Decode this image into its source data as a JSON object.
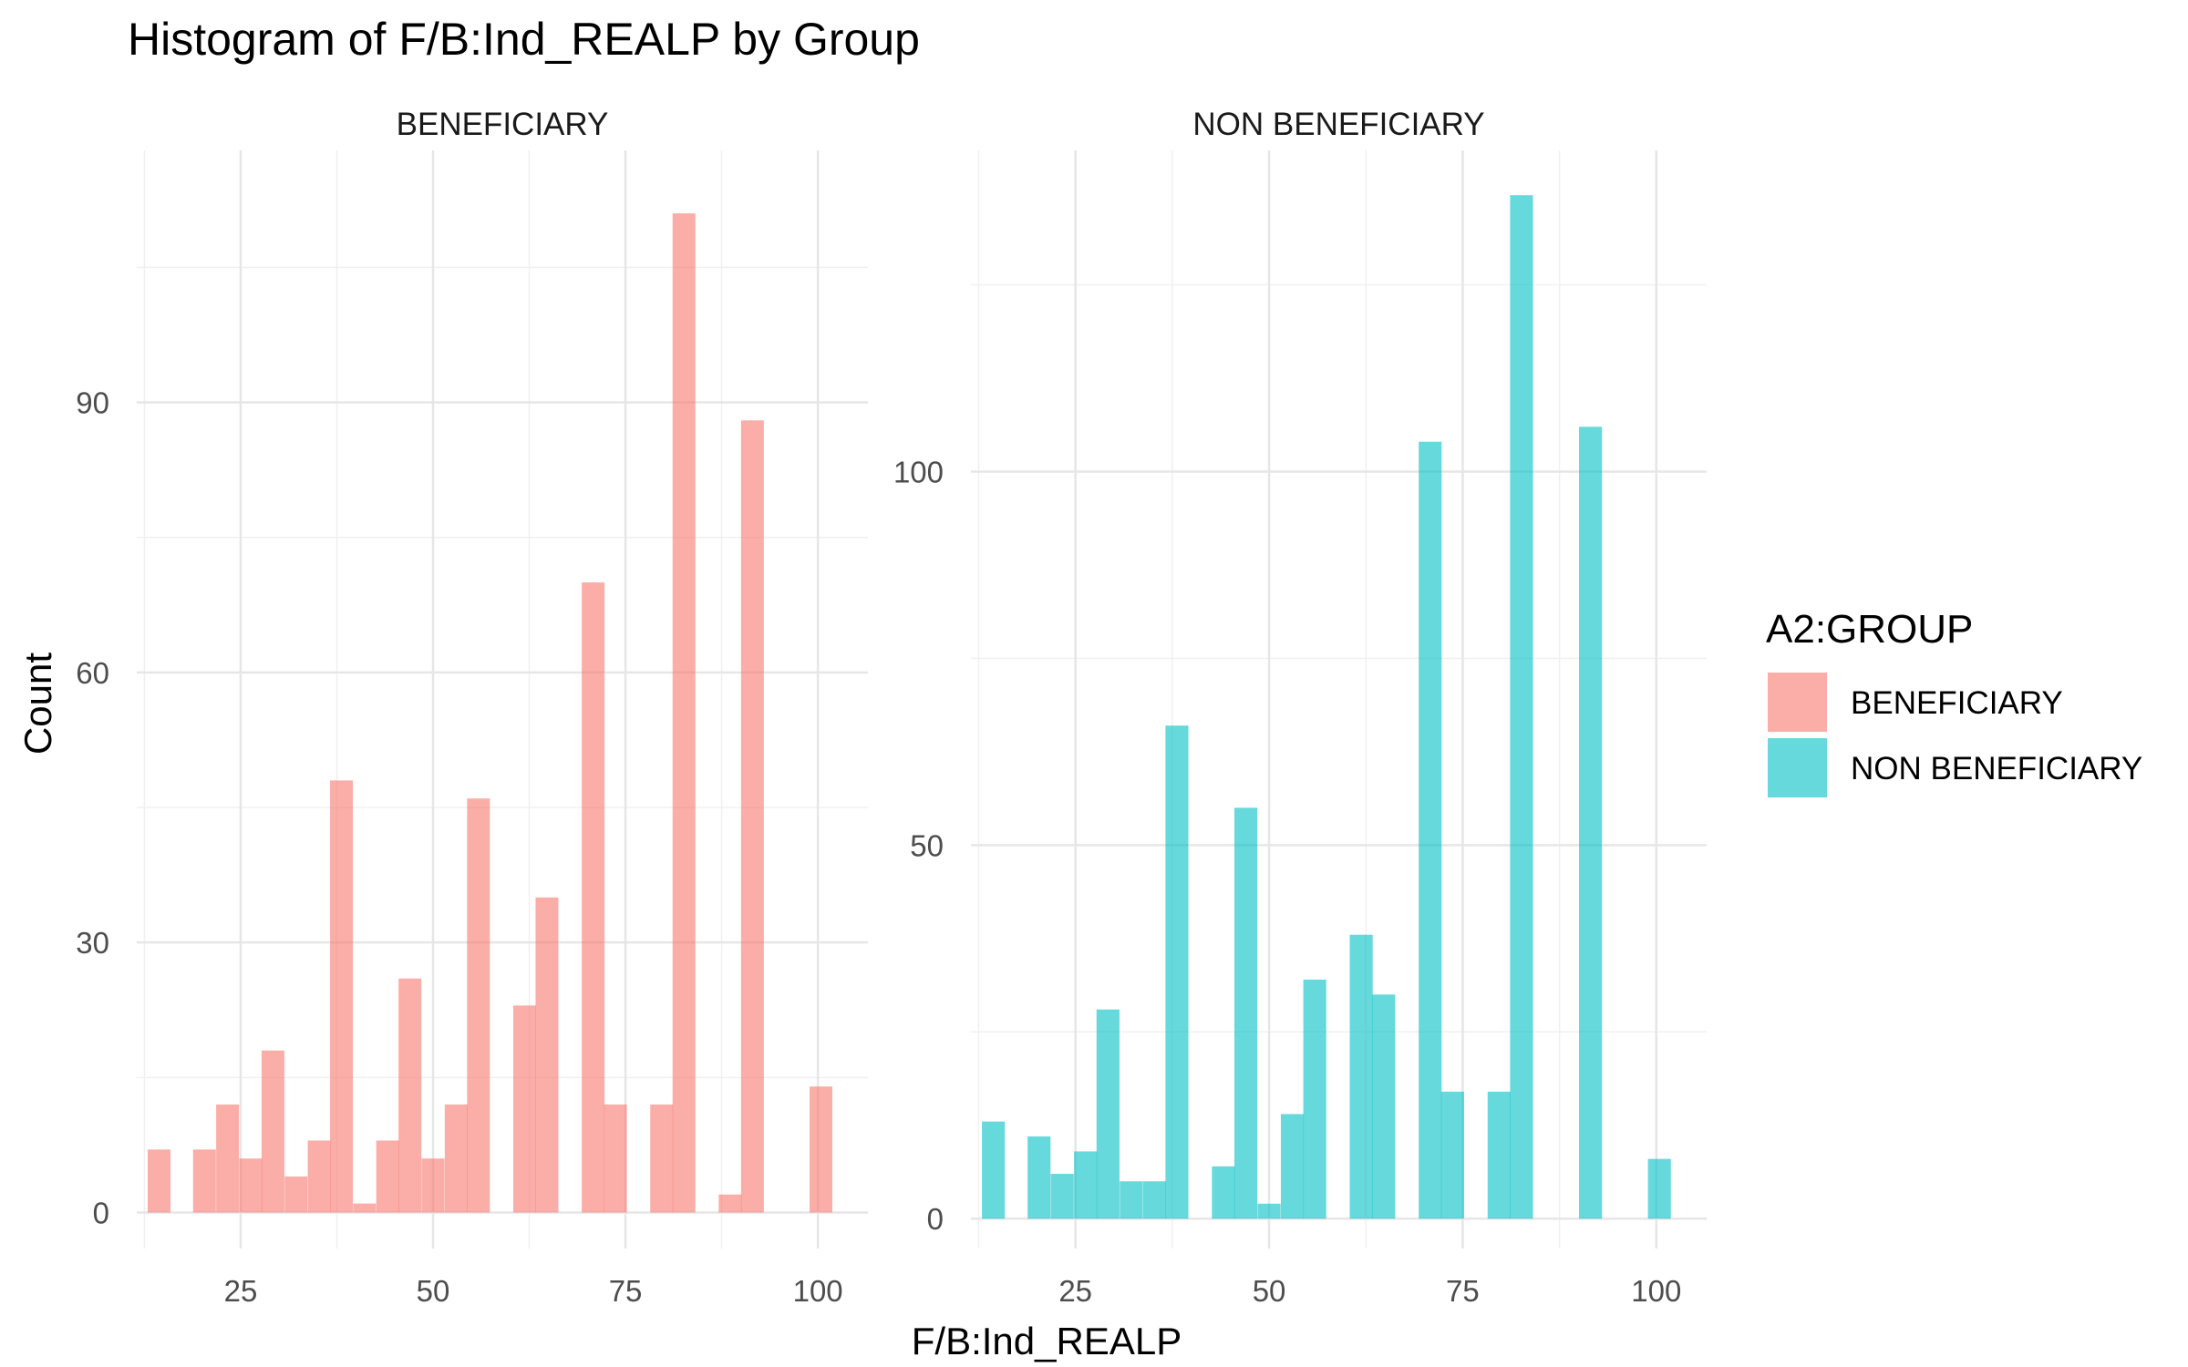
{
  "chart_data": {
    "type": "bar",
    "title": "Histogram of F/B:Ind_REALP by Group",
    "xlabel": "F/B:Ind_REALP",
    "ylabel": "Count",
    "grid": true,
    "bin_width": 2.96,
    "legend": {
      "title": "A2:GROUP",
      "position": "right",
      "entries": [
        {
          "label": "BENEFICIARY",
          "color": "#F8766D"
        },
        {
          "label": "NON BENEFICIARY",
          "color": "#00BFC4"
        }
      ]
    },
    "panels": [
      {
        "label": "BENEFICIARY",
        "color": "#F8766D",
        "xlim": [
          11.5,
          106.5
        ],
        "ylim": [
          -4,
          118
        ],
        "x_ticks": [
          25,
          50,
          75,
          100
        ],
        "y_ticks": [
          0,
          30,
          60,
          90
        ],
        "bins": [
          {
            "x": 14.4,
            "count": 7
          },
          {
            "x": 17.4,
            "count": 0
          },
          {
            "x": 20.3,
            "count": 7
          },
          {
            "x": 23.3,
            "count": 12
          },
          {
            "x": 26.3,
            "count": 6
          },
          {
            "x": 29.2,
            "count": 18
          },
          {
            "x": 32.2,
            "count": 4
          },
          {
            "x": 35.2,
            "count": 8
          },
          {
            "x": 38.1,
            "count": 48
          },
          {
            "x": 41.1,
            "count": 1
          },
          {
            "x": 44.1,
            "count": 8
          },
          {
            "x": 47.0,
            "count": 26
          },
          {
            "x": 50.0,
            "count": 6
          },
          {
            "x": 53.0,
            "count": 12
          },
          {
            "x": 55.9,
            "count": 46
          },
          {
            "x": 58.9,
            "count": 0
          },
          {
            "x": 61.9,
            "count": 23
          },
          {
            "x": 64.8,
            "count": 35
          },
          {
            "x": 67.8,
            "count": 0
          },
          {
            "x": 70.8,
            "count": 70
          },
          {
            "x": 73.7,
            "count": 12
          },
          {
            "x": 76.7,
            "count": 0
          },
          {
            "x": 79.7,
            "count": 12
          },
          {
            "x": 82.6,
            "count": 111
          },
          {
            "x": 85.6,
            "count": 0
          },
          {
            "x": 88.6,
            "count": 2
          },
          {
            "x": 91.5,
            "count": 88
          },
          {
            "x": 94.5,
            "count": 0
          },
          {
            "x": 97.5,
            "count": 0
          },
          {
            "x": 100.4,
            "count": 14
          }
        ]
      },
      {
        "label": "NON BENEFICIARY",
        "color": "#00BFC4",
        "xlim": [
          11.5,
          106.5
        ],
        "ylim": [
          -4,
          143
        ],
        "x_ticks": [
          25,
          50,
          75,
          100
        ],
        "y_ticks": [
          0,
          50,
          100
        ],
        "bins": [
          {
            "x": 14.4,
            "count": 13
          },
          {
            "x": 17.4,
            "count": 0
          },
          {
            "x": 20.3,
            "count": 11
          },
          {
            "x": 23.3,
            "count": 6
          },
          {
            "x": 26.3,
            "count": 9
          },
          {
            "x": 29.2,
            "count": 28
          },
          {
            "x": 32.2,
            "count": 5
          },
          {
            "x": 35.2,
            "count": 5
          },
          {
            "x": 38.1,
            "count": 66
          },
          {
            "x": 41.1,
            "count": 0
          },
          {
            "x": 44.1,
            "count": 7
          },
          {
            "x": 47.0,
            "count": 55
          },
          {
            "x": 50.0,
            "count": 2
          },
          {
            "x": 53.0,
            "count": 14
          },
          {
            "x": 55.9,
            "count": 32
          },
          {
            "x": 58.9,
            "count": 0
          },
          {
            "x": 61.9,
            "count": 38
          },
          {
            "x": 64.8,
            "count": 30
          },
          {
            "x": 67.8,
            "count": 0
          },
          {
            "x": 70.8,
            "count": 104
          },
          {
            "x": 73.7,
            "count": 17
          },
          {
            "x": 76.7,
            "count": 0
          },
          {
            "x": 79.7,
            "count": 17
          },
          {
            "x": 82.6,
            "count": 137
          },
          {
            "x": 85.6,
            "count": 0
          },
          {
            "x": 88.6,
            "count": 0
          },
          {
            "x": 91.5,
            "count": 106
          },
          {
            "x": 94.5,
            "count": 0
          },
          {
            "x": 97.5,
            "count": 0
          },
          {
            "x": 100.4,
            "count": 8
          }
        ]
      }
    ]
  }
}
